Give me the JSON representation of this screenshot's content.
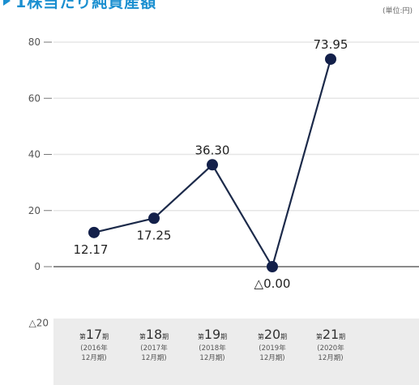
{
  "header": {
    "title": "1株当たり純資産額",
    "unit": "(単位:円)",
    "icon": "triangle-bullet-icon"
  },
  "colors": {
    "line": "#1c2a4a",
    "point": "#13204a",
    "title": "#1a8fd0",
    "category_band": "#ececec",
    "zero_line": "#8a8a8a",
    "grid": "#e6e6e6"
  },
  "chart_data": {
    "type": "line",
    "title": "1株当たり純資産額",
    "unit": "(単位:円)",
    "xlabel": "",
    "ylabel": "",
    "ylim": [
      -20,
      80
    ],
    "yticks": [
      80,
      60,
      40,
      20,
      0
    ],
    "ytick_labels": [
      "80",
      "60",
      "40",
      "20",
      "0"
    ],
    "ymin_label": "△20",
    "grid": true,
    "categories": [
      {
        "prefix": "第",
        "num": "17",
        "suffix": "期",
        "year": "2016年",
        "month": "12月期"
      },
      {
        "prefix": "第",
        "num": "18",
        "suffix": "期",
        "year": "2017年",
        "month": "12月期"
      },
      {
        "prefix": "第",
        "num": "19",
        "suffix": "期",
        "year": "2018年",
        "month": "12月期"
      },
      {
        "prefix": "第",
        "num": "20",
        "suffix": "期",
        "year": "2019年",
        "month": "12月期"
      },
      {
        "prefix": "第",
        "num": "21",
        "suffix": "期",
        "year": "2020年",
        "month": "12月期"
      }
    ],
    "values": [
      12.17,
      17.25,
      36.3,
      0.0,
      73.95
    ],
    "data_labels": [
      "12.17",
      "17.25",
      "36.30",
      "△0.00",
      "73.95"
    ],
    "label_positions": [
      "below",
      "below",
      "above",
      "below",
      "above"
    ]
  }
}
